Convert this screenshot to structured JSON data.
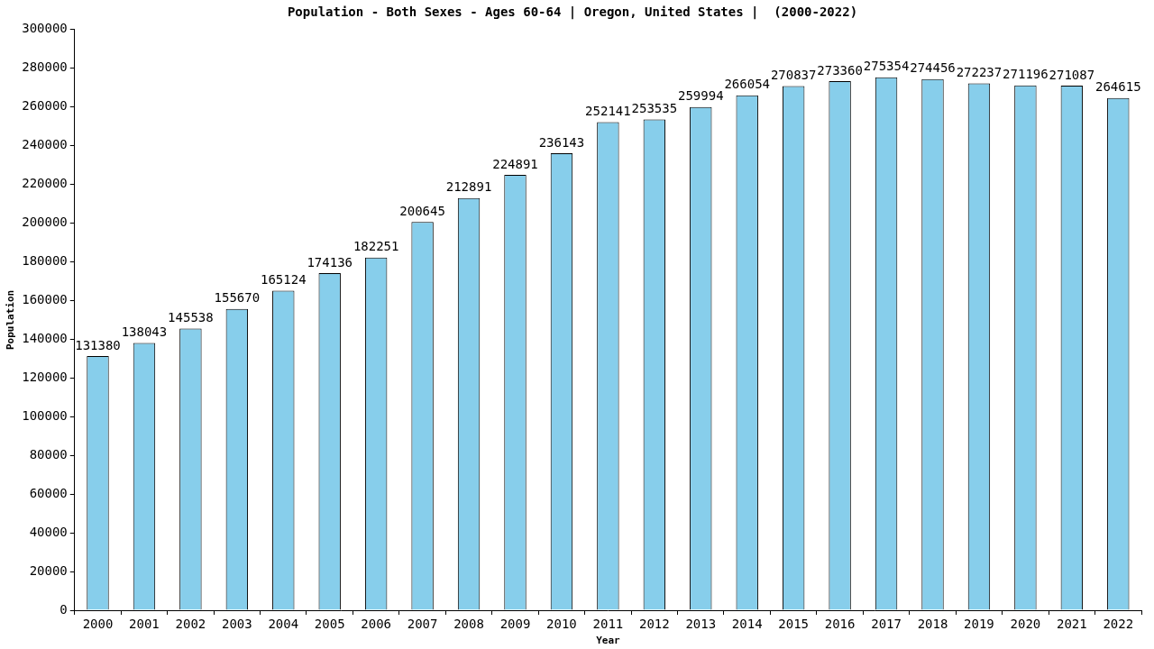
{
  "chart_data": {
    "type": "bar",
    "title": "Population - Both Sexes - Ages 60-64 | Oregon, United States |  (2000-2022)",
    "x_label": "Year",
    "y_label": "Population",
    "categories": [
      "2000",
      "2001",
      "2002",
      "2003",
      "2004",
      "2005",
      "2006",
      "2007",
      "2008",
      "2009",
      "2010",
      "2011",
      "2012",
      "2013",
      "2014",
      "2015",
      "2016",
      "2017",
      "2018",
      "2019",
      "2020",
      "2021",
      "2022"
    ],
    "values": [
      131380,
      138043,
      145538,
      155670,
      165124,
      174136,
      182251,
      200645,
      212891,
      224891,
      236143,
      252141,
      253535,
      259994,
      266054,
      270837,
      273360,
      275354,
      274456,
      272237,
      271196,
      271087,
      264615
    ],
    "color": "#87ceeb",
    "ylim": [
      0,
      300000
    ],
    "yticks": [
      0,
      20000,
      40000,
      60000,
      80000,
      100000,
      120000,
      140000,
      160000,
      180000,
      200000,
      220000,
      240000,
      260000,
      280000,
      300000
    ],
    "grid": false,
    "data_labels": true
  }
}
